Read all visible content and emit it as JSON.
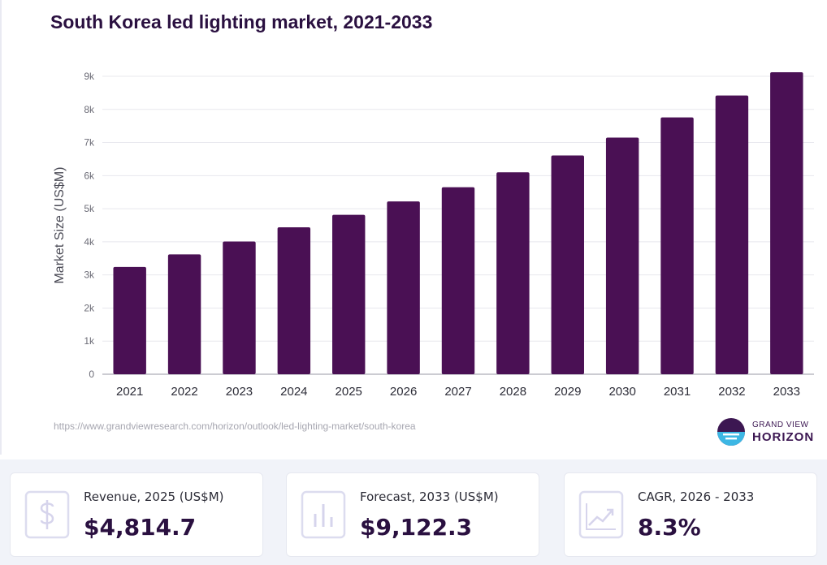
{
  "chart_data": {
    "type": "bar",
    "title": "South Korea led lighting market, 2021-2033",
    "ylabel": "Market Size (US$M)",
    "xlabel": "",
    "categories": [
      "2021",
      "2022",
      "2023",
      "2024",
      "2025",
      "2026",
      "2027",
      "2028",
      "2029",
      "2030",
      "2031",
      "2032",
      "2033"
    ],
    "values": [
      3240,
      3620,
      4010,
      4440,
      4814.7,
      5220,
      5650,
      6100,
      6610,
      7150,
      7760,
      8420,
      9122.3
    ],
    "ylim": [
      0,
      9000
    ],
    "yticks": [
      0,
      1000,
      2000,
      3000,
      4000,
      5000,
      6000,
      7000,
      8000,
      9000
    ],
    "ytick_labels": [
      "0",
      "1k",
      "2k",
      "3k",
      "4k",
      "5k",
      "6k",
      "7k",
      "8k",
      "9k"
    ],
    "grid": true,
    "bar_color": "#4a1054"
  },
  "source_url": "https://www.grandviewresearch.com/horizon/outlook/led-lighting-market/south-korea",
  "logo": {
    "line1": "GRAND VIEW",
    "line2": "HORIZON"
  },
  "stats": [
    {
      "icon": "dollar-icon",
      "label": "Revenue, 2025 (US$M)",
      "value": "$4,814.7"
    },
    {
      "icon": "bar-chart-icon",
      "label": "Forecast, 2033 (US$M)",
      "value": "$9,122.3"
    },
    {
      "icon": "trend-up-icon",
      "label": "CAGR, 2026 - 2033",
      "value": "8.3%"
    }
  ]
}
